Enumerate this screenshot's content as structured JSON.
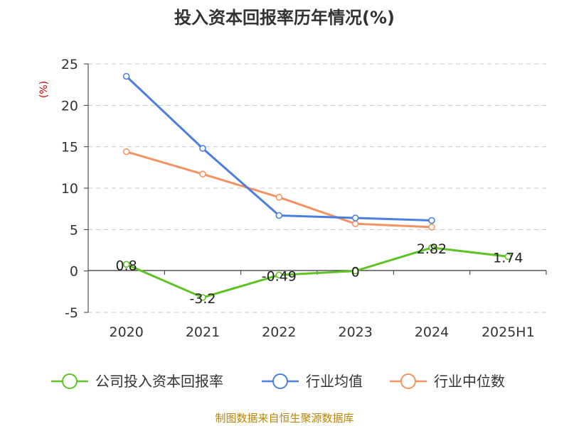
{
  "chart_data": {
    "type": "line",
    "title": "投入资本回报率历年情况(%)",
    "ylabel": "(%)",
    "categories": [
      "2020",
      "2021",
      "2022",
      "2023",
      "2024",
      "2025H1"
    ],
    "ylim": [
      -5,
      25
    ],
    "yticks": [
      -5,
      0,
      5,
      10,
      15,
      20,
      25
    ],
    "grid": true,
    "legend_position": "bottom",
    "series": [
      {
        "name": "公司投入资本回报率",
        "color": "#5fc325",
        "values": [
          0.8,
          -3.2,
          -0.49,
          0,
          2.82,
          1.74
        ],
        "labels": [
          "0.8",
          "-3.2",
          "-0.49",
          "0",
          "2.82",
          "1.74"
        ]
      },
      {
        "name": "行业均值",
        "color": "#4a7fe0",
        "values": [
          23.5,
          14.8,
          6.7,
          6.4,
          6.1,
          null
        ]
      },
      {
        "name": "行业中位数",
        "color": "#f59261",
        "values": [
          14.4,
          11.7,
          8.9,
          5.7,
          5.3,
          null
        ]
      }
    ]
  },
  "source": "制图数据来自恒生聚源数据库"
}
